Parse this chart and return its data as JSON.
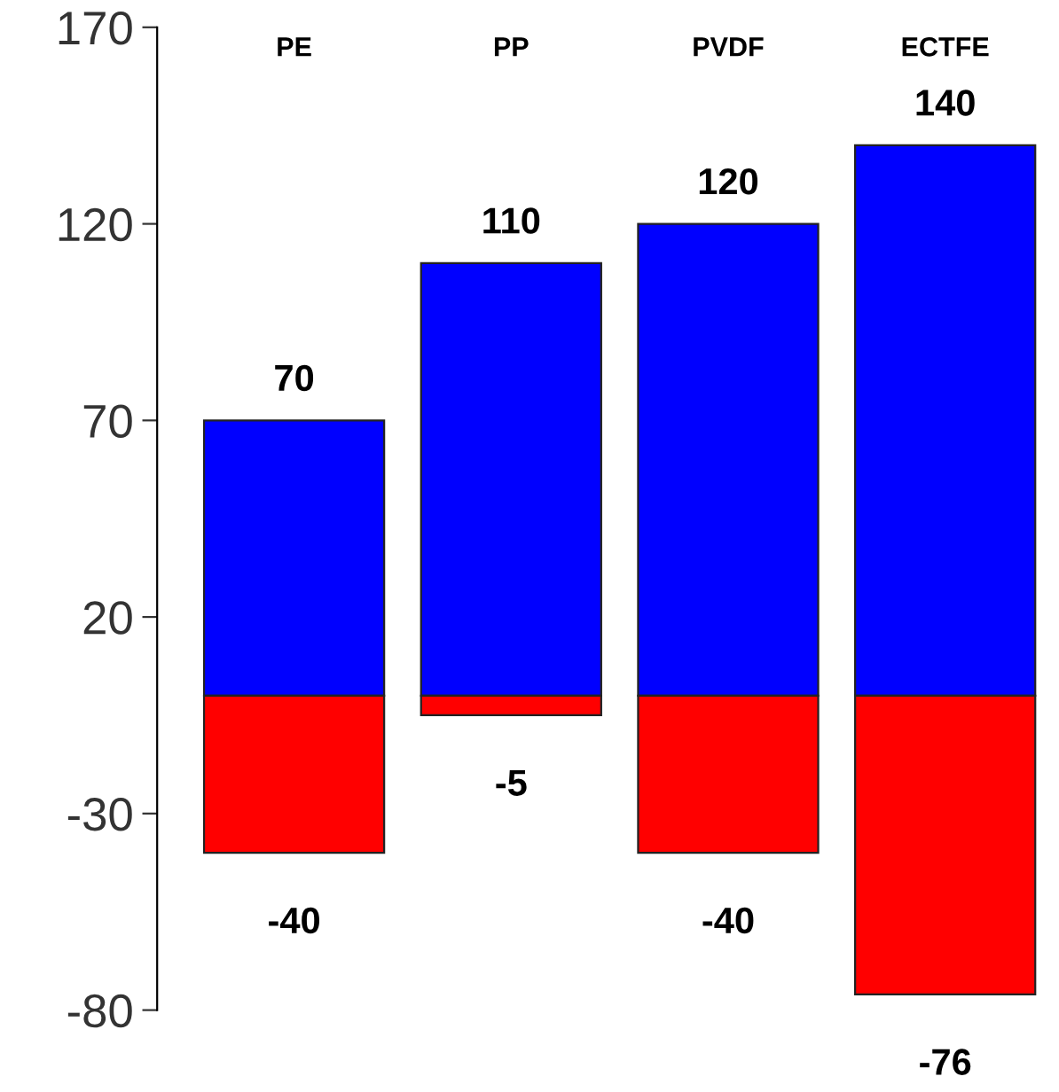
{
  "chart_data": {
    "type": "bar",
    "categories": [
      "PE",
      "PP",
      "PVDF",
      "ECTFE"
    ],
    "stacked": true,
    "series": [
      {
        "color": "#0000ff",
        "values": [
          70,
          110,
          120,
          140
        ]
      },
      {
        "color": "#ff0000",
        "values": [
          -40,
          -5,
          -40,
          -76
        ]
      }
    ],
    "ylim": [
      -80,
      170
    ],
    "yticks": [
      170,
      120,
      70,
      20,
      -30,
      -80
    ],
    "data_labels": true,
    "grid": false,
    "legend": false
  }
}
